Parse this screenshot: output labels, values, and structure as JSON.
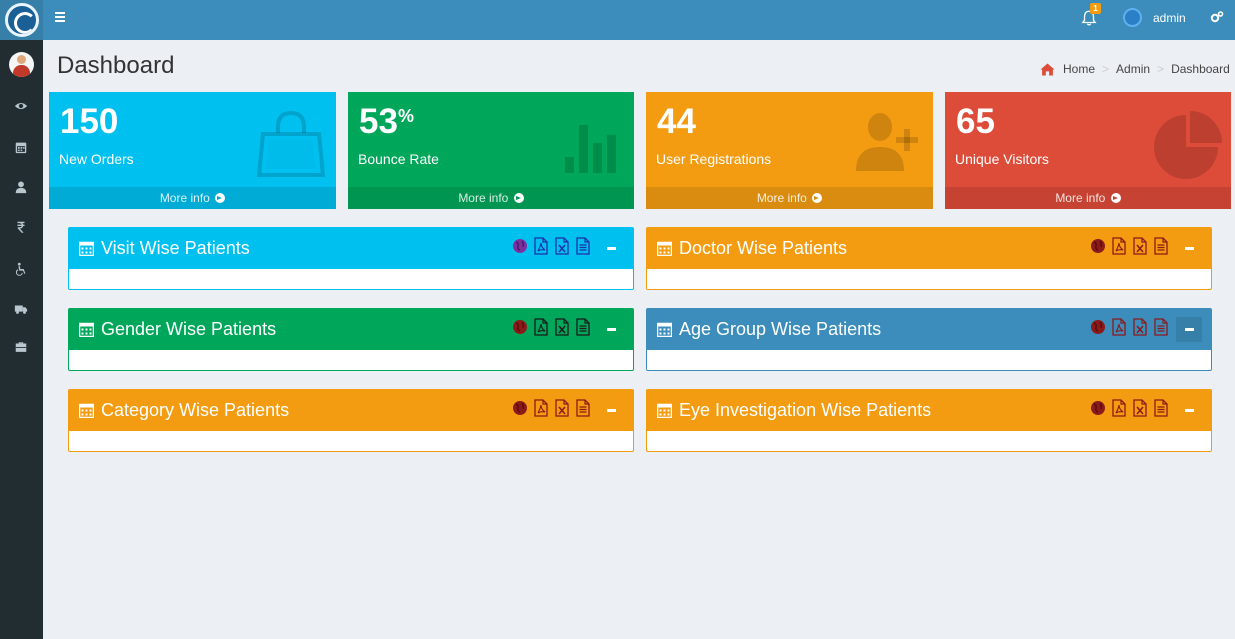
{
  "header": {
    "notification_count": "1",
    "username": "admin"
  },
  "sidebar": {
    "items": [
      "eye-icon",
      "calendar-icon",
      "user-icon",
      "rupee-icon",
      "wheelchair-icon",
      "truck-icon",
      "briefcase-icon"
    ]
  },
  "page": {
    "title": "Dashboard",
    "breadcrumb": [
      "Home",
      "Admin",
      "Dashboard"
    ]
  },
  "stats": [
    {
      "value": "150",
      "suffix": "",
      "label": "New Orders",
      "more": "More info",
      "color": "#00c0ef",
      "icon": "shopping-bag-icon"
    },
    {
      "value": "53",
      "suffix": "%",
      "label": "Bounce Rate",
      "more": "More info",
      "color": "#00a65a",
      "icon": "bar-chart-icon"
    },
    {
      "value": "44",
      "suffix": "",
      "label": "User Registrations",
      "more": "More info",
      "color": "#f39c12",
      "icon": "user-plus-icon"
    },
    {
      "value": "65",
      "suffix": "",
      "label": "Unique Visitors",
      "more": "More info",
      "color": "#dd4b39",
      "icon": "pie-chart-icon"
    }
  ],
  "panels": [
    {
      "title": "Visit Wise Patients",
      "color": "#00c0ef"
    },
    {
      "title": "Doctor Wise Patients",
      "color": "#f39c12"
    },
    {
      "title": "Gender Wise Patients",
      "color": "#00a65a"
    },
    {
      "title": "Age Group Wise Patients",
      "color": "#3c8dbc"
    },
    {
      "title": "Category Wise Patients",
      "color": "#f39c12"
    },
    {
      "title": "Eye Investigation Wise Patients",
      "color": "#f39c12"
    }
  ]
}
